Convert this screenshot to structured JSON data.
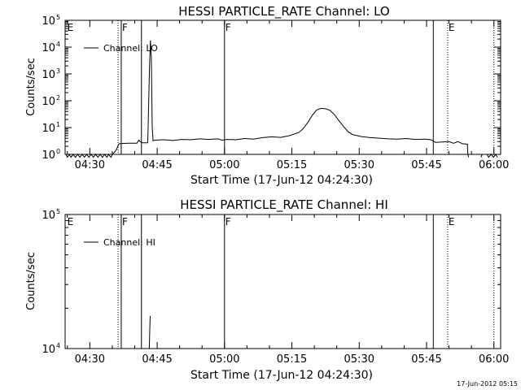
{
  "colors": {
    "background": "#ffffff",
    "foreground": "#000000"
  },
  "footer_timestamp": "17-Jun-2012 05:15",
  "chart_data": [
    {
      "type": "line",
      "title": "HESSI PARTICLE_RATE Channel: LO",
      "xlabel": "Start Time (17-Jun-12 04:24:30)",
      "ylabel": "Counts/sec",
      "x_unit": "minutes since 04:24:30",
      "xlim": [
        0,
        97
      ],
      "x_ticks": [
        {
          "x": 5.5,
          "label": "04:30"
        },
        {
          "x": 20.5,
          "label": "04:45"
        },
        {
          "x": 35.5,
          "label": "05:00"
        },
        {
          "x": 50.5,
          "label": "05:15"
        },
        {
          "x": 65.5,
          "label": "05:30"
        },
        {
          "x": 80.5,
          "label": "05:45"
        },
        {
          "x": 95.5,
          "label": "06:00"
        }
      ],
      "y_scale": "log",
      "ylim": [
        1,
        100000
      ],
      "y_ticks": [
        {
          "v": 1,
          "base": "10",
          "exp": "0"
        },
        {
          "v": 10,
          "base": "10",
          "exp": "1"
        },
        {
          "v": 100,
          "base": "10",
          "exp": "2"
        },
        {
          "v": 1000,
          "base": "10",
          "exp": "3"
        },
        {
          "v": 10000,
          "base": "10",
          "exp": "4"
        },
        {
          "v": 100000,
          "base": "10",
          "exp": "5"
        }
      ],
      "legend": {
        "label": "Channel: LO",
        "position": "top-left"
      },
      "markers": [
        {
          "x": 0.3,
          "label": "E",
          "style": "none"
        },
        {
          "x": 11.8,
          "label": "",
          "style": "dotted"
        },
        {
          "x": 12.5,
          "label": "F",
          "style": "solid"
        },
        {
          "x": 17.0,
          "label": "",
          "style": "solid"
        },
        {
          "x": 35.5,
          "label": "F",
          "style": "solid"
        },
        {
          "x": 82.0,
          "label": "",
          "style": "solid"
        },
        {
          "x": 85.2,
          "label": "E",
          "style": "dotted"
        },
        {
          "x": 95.5,
          "label": "",
          "style": "dotted"
        }
      ],
      "series": [
        {
          "segments": [
            [
              [
                0.2,
                1.0
              ],
              [
                0.5,
                0.78
              ],
              [
                0.9,
                1.0
              ],
              [
                1.3,
                0.78
              ],
              [
                1.8,
                1.0
              ],
              [
                2.3,
                0.78
              ],
              [
                2.8,
                1.0
              ],
              [
                3.3,
                0.78
              ],
              [
                3.8,
                1.0
              ],
              [
                4.3,
                0.78
              ],
              [
                4.8,
                1.0
              ],
              [
                5.3,
                0.78
              ],
              [
                5.8,
                1.0
              ],
              [
                6.3,
                0.78
              ],
              [
                6.8,
                1.0
              ],
              [
                7.3,
                0.78
              ],
              [
                7.8,
                1.0
              ],
              [
                8.3,
                0.78
              ],
              [
                8.8,
                1.0
              ],
              [
                9.3,
                0.78
              ],
              [
                9.7,
                1.0
              ],
              [
                10.2,
                0.78
              ],
              [
                10.6,
                1.05
              ],
              [
                11.0,
                1.2
              ],
              [
                11.4,
                1.5
              ],
              [
                12.0,
                2.5
              ],
              [
                14.0,
                2.6
              ],
              [
                16.0,
                2.6
              ],
              [
                16.4,
                3.4
              ],
              [
                16.7,
                3.0
              ],
              [
                17.2,
                2.7
              ],
              [
                18.4,
                2.7
              ],
              [
                18.8,
                2000
              ],
              [
                19.0,
                18000
              ],
              [
                19.2,
                4000
              ],
              [
                19.4,
                10
              ],
              [
                19.6,
                3.2
              ],
              [
                20.0,
                3.4
              ],
              [
                22.0,
                3.5
              ],
              [
                24.0,
                3.3
              ],
              [
                26.0,
                3.6
              ],
              [
                28.0,
                3.5
              ],
              [
                30.0,
                3.8
              ],
              [
                32.0,
                3.6
              ],
              [
                34.0,
                3.8
              ],
              [
                35.0,
                3.4
              ],
              [
                36.0,
                3.6
              ],
              [
                38.0,
                3.5
              ],
              [
                40.0,
                3.9
              ],
              [
                42.0,
                3.7
              ],
              [
                44.0,
                4.2
              ],
              [
                46.0,
                4.5
              ],
              [
                48.0,
                4.3
              ],
              [
                50.0,
                5.0
              ],
              [
                52.0,
                6.5
              ],
              [
                53.0,
                9.0
              ],
              [
                54.0,
                15
              ],
              [
                55.0,
                28
              ],
              [
                56.0,
                45
              ],
              [
                57.0,
                52
              ],
              [
                58.0,
                50
              ],
              [
                59.0,
                44
              ],
              [
                60.0,
                30
              ],
              [
                61.0,
                18
              ],
              [
                62.0,
                11
              ],
              [
                63.0,
                7.0
              ],
              [
                64.0,
                5.5
              ],
              [
                66.0,
                4.6
              ],
              [
                68.0,
                4.2
              ],
              [
                70.0,
                4.0
              ],
              [
                72.0,
                3.8
              ],
              [
                74.0,
                3.7
              ],
              [
                76.0,
                3.9
              ],
              [
                78.0,
                3.6
              ],
              [
                80.0,
                3.7
              ],
              [
                81.5,
                3.5
              ],
              [
                82.5,
                2.8
              ],
              [
                84.0,
                2.9
              ],
              [
                85.5,
                3.0
              ],
              [
                86.5,
                2.6
              ],
              [
                87.5,
                3.0
              ],
              [
                88.5,
                2.5
              ],
              [
                89.6,
                2.4
              ],
              [
                89.7,
                1.0
              ],
              [
                89.9,
                0.78
              ]
            ],
            [
              [
                92.6,
                0.78
              ],
              [
                92.9,
                1.0
              ],
              [
                94.0,
                1.0
              ],
              [
                94.3,
                0.78
              ],
              [
                94.9,
                1.0
              ],
              [
                95.4,
                0.78
              ],
              [
                95.9,
                1.0
              ],
              [
                96.3,
                0.78
              ]
            ]
          ]
        }
      ]
    },
    {
      "type": "line",
      "title": "HESSI PARTICLE_RATE Channel: HI",
      "xlabel": "Start Time (17-Jun-12 04:24:30)",
      "ylabel": "Counts/sec",
      "x_unit": "minutes since 04:24:30",
      "xlim": [
        0,
        97
      ],
      "x_ticks": [
        {
          "x": 5.5,
          "label": "04:30"
        },
        {
          "x": 20.5,
          "label": "04:45"
        },
        {
          "x": 35.5,
          "label": "05:00"
        },
        {
          "x": 50.5,
          "label": "05:15"
        },
        {
          "x": 65.5,
          "label": "05:30"
        },
        {
          "x": 80.5,
          "label": "05:45"
        },
        {
          "x": 95.5,
          "label": "06:00"
        }
      ],
      "y_scale": "log",
      "ylim": [
        10000,
        100000
      ],
      "y_ticks": [
        {
          "v": 10000,
          "base": "10",
          "exp": "4"
        },
        {
          "v": 100000,
          "base": "10",
          "exp": "5"
        }
      ],
      "legend": {
        "label": "Channel: HI",
        "position": "top-left"
      },
      "markers": [
        {
          "x": 0.3,
          "label": "E",
          "style": "none"
        },
        {
          "x": 11.8,
          "label": "",
          "style": "dotted"
        },
        {
          "x": 12.5,
          "label": "F",
          "style": "solid"
        },
        {
          "x": 17.0,
          "label": "",
          "style": "solid"
        },
        {
          "x": 35.5,
          "label": "F",
          "style": "solid"
        },
        {
          "x": 82.0,
          "label": "",
          "style": "solid"
        },
        {
          "x": 85.2,
          "label": "E",
          "style": "dotted"
        },
        {
          "x": 95.5,
          "label": "",
          "style": "dotted"
        }
      ],
      "series": [
        {
          "segments": [
            [
              [
                18.75,
                10000
              ],
              [
                18.85,
                14000
              ],
              [
                18.95,
                17500
              ]
            ]
          ]
        }
      ]
    }
  ]
}
